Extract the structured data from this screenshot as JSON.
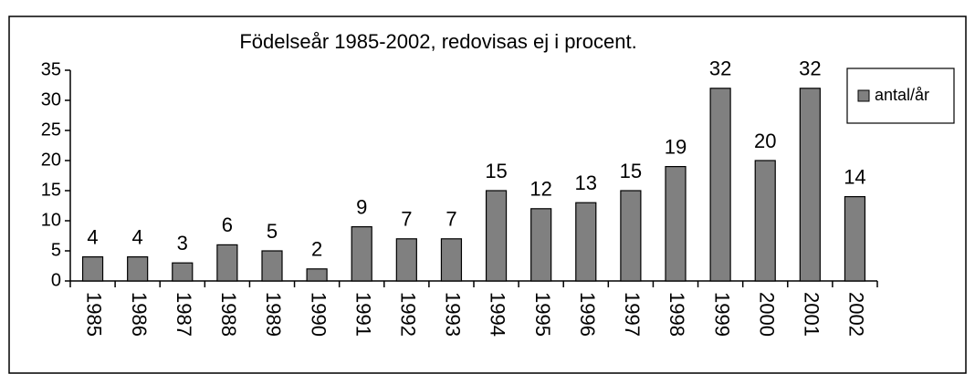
{
  "chart_data": {
    "type": "bar",
    "title": "Födelseår 1985-2002, redovisas ej i procent.",
    "categories": [
      "1985",
      "1986",
      "1987",
      "1988",
      "1989",
      "1990",
      "1991",
      "1992",
      "1993",
      "1994",
      "1995",
      "1996",
      "1997",
      "1998",
      "1999",
      "2000",
      "2001",
      "2002"
    ],
    "series": [
      {
        "name": "antal/år",
        "color": "#808080",
        "values": [
          4,
          4,
          3,
          6,
          5,
          2,
          9,
          7,
          7,
          15,
          12,
          13,
          15,
          19,
          32,
          20,
          32,
          14
        ]
      }
    ],
    "ylim": [
      0,
      35
    ],
    "yticks": [
      0,
      5,
      10,
      15,
      20,
      25,
      30,
      35
    ],
    "grid": false,
    "legend": "right"
  }
}
